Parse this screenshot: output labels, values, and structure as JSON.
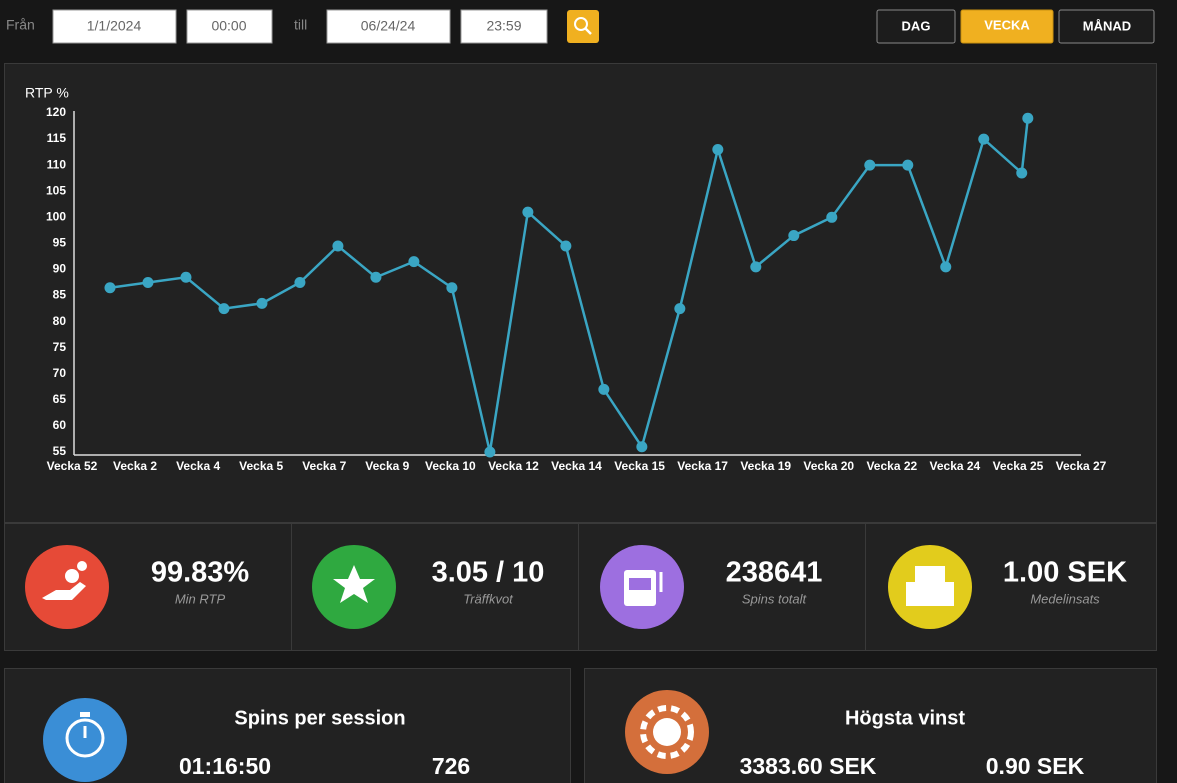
{
  "filters": {
    "from_label": "Från",
    "from_date": "1/1/2024",
    "from_time": "00:00",
    "to_label": "till",
    "to_date": "06/24/24",
    "to_time": "23:59"
  },
  "period_buttons": [
    "DAG",
    "VECKA",
    "MÅNAD"
  ],
  "chart_data": {
    "type": "line",
    "y_label": "RTP %",
    "color": "#3aa6c4",
    "x": [
      1,
      2,
      3,
      4,
      5,
      6,
      7,
      8,
      9,
      10,
      11,
      12,
      13,
      14,
      15,
      16,
      17,
      18,
      19,
      20,
      21,
      22,
      23,
      24,
      25,
      25.16
    ],
    "values": [
      86.5,
      87.5,
      88.5,
      82.5,
      83.5,
      87.5,
      94.5,
      88.5,
      91.5,
      86.5,
      55,
      101,
      94.5,
      67,
      56,
      82.5,
      113,
      90.5,
      96.5,
      100,
      110,
      110,
      90.5,
      115,
      108.5,
      119
    ],
    "xlim": [
      0,
      26.56
    ],
    "xticks": [
      {
        "value": 0,
        "label": "Vecka 52"
      },
      {
        "value": 1.66,
        "label": "Vecka 2"
      },
      {
        "value": 3.32,
        "label": "Vecka 4"
      },
      {
        "value": 4.98,
        "label": "Vecka 5"
      },
      {
        "value": 6.64,
        "label": "Vecka 7"
      },
      {
        "value": 8.3,
        "label": "Vecka 9"
      },
      {
        "value": 9.96,
        "label": "Vecka 10"
      },
      {
        "value": 11.62,
        "label": "Vecka 12"
      },
      {
        "value": 13.28,
        "label": "Vecka 14"
      },
      {
        "value": 14.94,
        "label": "Vecka 15"
      },
      {
        "value": 16.6,
        "label": "Vecka 17"
      },
      {
        "value": 18.26,
        "label": "Vecka 19"
      },
      {
        "value": 19.92,
        "label": "Vecka 20"
      },
      {
        "value": 21.58,
        "label": "Vecka 22"
      },
      {
        "value": 23.24,
        "label": "Vecka 24"
      },
      {
        "value": 24.9,
        "label": "Vecka 25"
      },
      {
        "value": 26.56,
        "label": "Vecka 27"
      }
    ],
    "ylim": [
      55,
      120
    ],
    "yticks": [
      55,
      60,
      65,
      70,
      75,
      80,
      85,
      90,
      95,
      100,
      105,
      110,
      115,
      120
    ]
  },
  "stats": [
    {
      "value": "99.83%",
      "label": "Min RTP"
    },
    {
      "value": "3.05 / 10",
      "label": "Träffkvot"
    },
    {
      "value": "238641",
      "label": "Spins totalt"
    },
    {
      "value": "1.00 SEK",
      "label": "Medelinsats"
    }
  ],
  "spins_per_session": {
    "title": "Spins per session",
    "values": [
      "01:16:50",
      "726"
    ]
  },
  "highest_win": {
    "title": "Högsta vinst",
    "values": [
      "3383.60 SEK",
      "0.90 SEK"
    ]
  }
}
